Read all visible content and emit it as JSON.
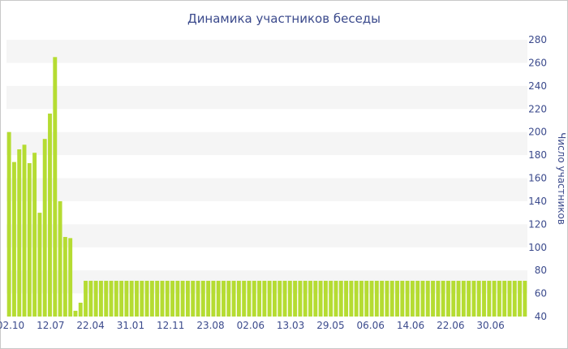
{
  "chart_data": {
    "type": "bar",
    "title": "Динамика участников беседы",
    "ylabel": "Число участников",
    "xlabel": "",
    "ylim": [
      40,
      280
    ],
    "y_ticks": [
      40,
      60,
      80,
      100,
      120,
      140,
      160,
      180,
      200,
      220,
      240,
      260,
      280
    ],
    "x_tick_labels": [
      "02.10",
      "12.07",
      "22.04",
      "31.01",
      "12.11",
      "23.08",
      "02.06",
      "13.03",
      "29.05",
      "06.06",
      "14.06",
      "22.06",
      "30.06"
    ],
    "y_axis_position": "right",
    "grid": "horizontal-bands",
    "bar_color": "#b5dc32",
    "band_color": "#f5f5f5",
    "text_color": "#3b4a8c",
    "values": [
      200,
      174,
      185,
      189,
      173,
      182,
      130,
      194,
      216,
      265,
      140,
      109,
      108,
      45,
      52,
      71,
      71,
      71,
      71,
      71,
      71,
      71,
      71,
      71,
      71,
      71,
      71,
      71,
      71,
      71,
      71,
      71,
      71,
      71,
      71,
      71,
      71,
      71,
      71,
      71,
      71,
      71,
      71,
      71,
      71,
      71,
      71,
      71,
      71,
      71,
      71,
      71,
      71,
      71,
      71,
      71,
      71,
      71,
      71,
      71,
      71,
      71,
      71,
      71,
      71,
      71,
      71,
      71,
      71,
      71,
      71,
      71,
      71,
      71,
      71,
      71,
      71,
      71,
      71,
      71,
      71,
      71,
      71,
      71,
      71,
      71,
      71,
      71,
      71,
      71,
      71,
      71,
      71,
      71,
      71,
      71,
      71,
      71,
      71,
      71,
      71,
      71
    ]
  }
}
